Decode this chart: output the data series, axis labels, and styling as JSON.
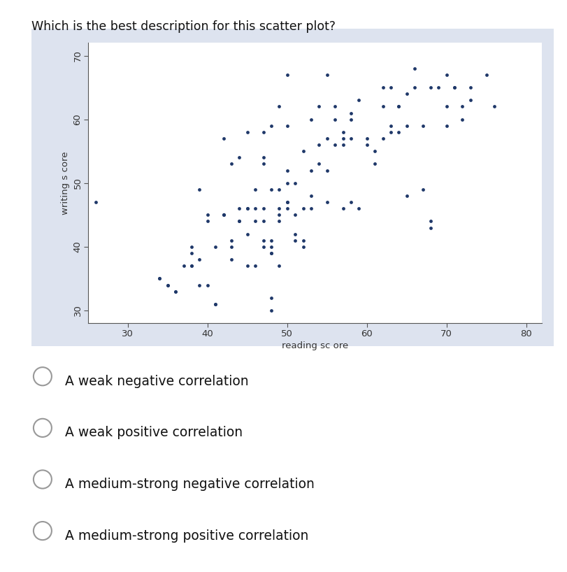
{
  "title": "Which is the best description for this scatter plot?",
  "xlabel": "reading sc ore",
  "ylabel": "writing s core",
  "xlim": [
    25,
    82
  ],
  "ylim": [
    28,
    72
  ],
  "xticks": [
    30,
    40,
    50,
    60,
    70,
    80
  ],
  "yticks": [
    30,
    40,
    50,
    60,
    70
  ],
  "dot_color": "#1F3869",
  "dot_size": 12,
  "panel_bg_color": "#DDE3EF",
  "plot_bg_color": "#FFFFFF",
  "fig_bg_color": "#FFFFFF",
  "grid_color": "#FFFFFF",
  "options": [
    "A weak negative correlation",
    "A weak positive correlation",
    "A medium-strong negative correlation",
    "A medium-strong positive correlation"
  ],
  "x": [
    26,
    34,
    34,
    35,
    35,
    36,
    36,
    37,
    38,
    38,
    38,
    38,
    39,
    39,
    39,
    40,
    40,
    40,
    41,
    41,
    41,
    42,
    42,
    42,
    42,
    43,
    43,
    43,
    43,
    44,
    44,
    44,
    44,
    45,
    45,
    45,
    45,
    45,
    46,
    46,
    46,
    46,
    47,
    47,
    47,
    47,
    47,
    47,
    47,
    48,
    48,
    48,
    48,
    48,
    48,
    48,
    48,
    49,
    49,
    49,
    49,
    49,
    49,
    50,
    50,
    50,
    50,
    50,
    50,
    50,
    51,
    51,
    51,
    51,
    52,
    52,
    52,
    52,
    53,
    53,
    53,
    53,
    54,
    54,
    54,
    55,
    55,
    55,
    55,
    56,
    56,
    56,
    57,
    57,
    57,
    57,
    58,
    58,
    58,
    58,
    59,
    59,
    60,
    60,
    61,
    61,
    62,
    62,
    62,
    63,
    63,
    63,
    64,
    64,
    64,
    65,
    65,
    65,
    66,
    66,
    67,
    67,
    68,
    68,
    68,
    69,
    70,
    70,
    70,
    71,
    71,
    72,
    72,
    73,
    73,
    75,
    76
  ],
  "y": [
    47,
    35,
    35,
    34,
    34,
    33,
    33,
    37,
    37,
    37,
    39,
    40,
    34,
    38,
    49,
    34,
    44,
    45,
    31,
    31,
    40,
    45,
    45,
    45,
    57,
    38,
    40,
    41,
    53,
    44,
    44,
    46,
    54,
    37,
    42,
    46,
    46,
    58,
    37,
    44,
    46,
    49,
    40,
    41,
    44,
    46,
    53,
    54,
    58,
    30,
    32,
    39,
    39,
    40,
    41,
    49,
    59,
    37,
    44,
    45,
    46,
    49,
    62,
    46,
    47,
    47,
    50,
    52,
    59,
    67,
    41,
    42,
    45,
    50,
    40,
    41,
    46,
    55,
    46,
    48,
    52,
    60,
    53,
    56,
    62,
    47,
    52,
    57,
    67,
    56,
    60,
    62,
    46,
    56,
    57,
    58,
    47,
    57,
    60,
    61,
    46,
    63,
    56,
    57,
    53,
    55,
    57,
    62,
    65,
    58,
    59,
    65,
    58,
    62,
    62,
    48,
    59,
    64,
    65,
    68,
    49,
    59,
    43,
    44,
    65,
    65,
    59,
    62,
    67,
    65,
    65,
    60,
    62,
    63,
    65,
    67,
    62
  ]
}
